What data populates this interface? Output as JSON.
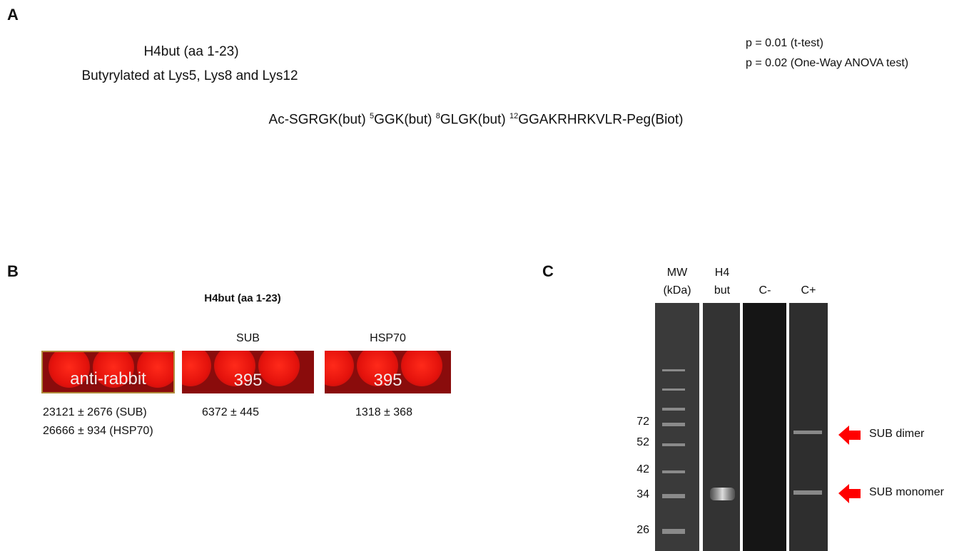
{
  "panel_a": {
    "label": "A",
    "title": "H4but (aa 1-23)",
    "subtitle": "Butyrylated at Lys5, Lys8 and Lys12",
    "stats": [
      "p = 0.01 (t-test)",
      "p = 0.02 (One-Way ANOVA test)"
    ],
    "sequence": [
      "Ac-SGRGK(but)",
      "5",
      "GGK(but)",
      "8",
      "GLGK(but)",
      "12",
      "GGAKRHRKVLR-Peg(Biot)"
    ]
  },
  "panel_b": {
    "label": "B",
    "title": "H4but (aa 1-23)",
    "spots": [
      {
        "image_text": "anti-rabbit",
        "values": [
          "23121 ± 2676 (SUB)",
          "26666 ± 934 (HSP70)"
        ]
      },
      {
        "header": "SUB",
        "image_text": "395",
        "values": [
          "6372 ± 445"
        ]
      },
      {
        "header": "HSP70",
        "image_text": "395",
        "values": [
          "1318 ± 368"
        ]
      }
    ]
  },
  "panel_c": {
    "label": "C",
    "lanes": [
      [
        "MW",
        "(kDa)"
      ],
      [
        "H4",
        "but"
      ],
      [
        "C-"
      ],
      [
        "C+"
      ]
    ],
    "markers": [
      72,
      52,
      42,
      34,
      26
    ],
    "arrows": [
      "SUB dimer",
      "SUB monomer"
    ]
  }
}
